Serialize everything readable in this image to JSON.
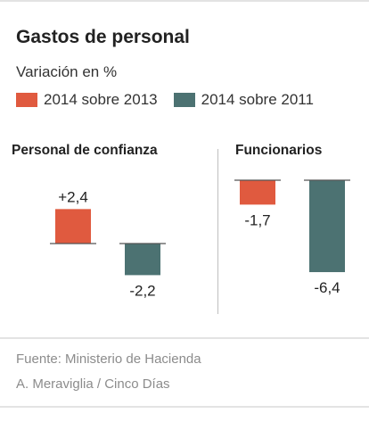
{
  "header": {
    "title": "Gastos de personal",
    "subtitle": "Variación en %"
  },
  "legend": [
    {
      "label": "2014 sobre 2013",
      "color": "#e05a3f"
    },
    {
      "label": "2014 sobre 2011",
      "color": "#4c7272"
    }
  ],
  "chart_data": {
    "type": "bar",
    "title": "Gastos de personal",
    "subtitle": "Variación en %",
    "categories": [
      "Personal de confianza",
      "Funcionarios"
    ],
    "series": [
      {
        "name": "2014 sobre 2013",
        "values": [
          2.4,
          -1.7
        ],
        "labels": [
          "+2,4",
          "-1,7"
        ],
        "color": "#e05a3f"
      },
      {
        "name": "2014 sobre 2011",
        "values": [
          -2.2,
          -6.4
        ],
        "labels": [
          "-2,2",
          "-6,4"
        ],
        "color": "#4c7272"
      }
    ],
    "legend": "top-left",
    "grid": false
  },
  "source": {
    "line1": "Fuente: Ministerio de Hacienda",
    "line2": "A. Meraviglia / Cinco Días"
  }
}
